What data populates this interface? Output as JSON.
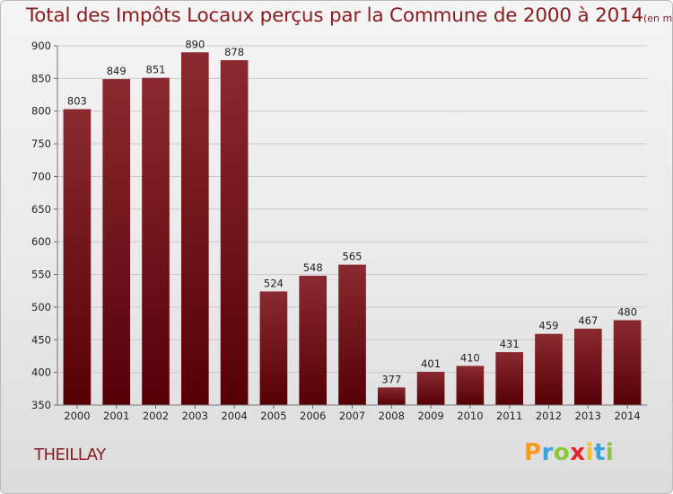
{
  "header": {
    "title": "Total des Impôts Locaux perçus par la Commune de 2000 à 2014",
    "unit": "(en milliers d'€)"
  },
  "commune": "THEILLAY",
  "logo": {
    "text": "Proxiti",
    "letters": [
      "P",
      "r",
      "o",
      "x",
      "i",
      "t",
      "i"
    ]
  },
  "chart_data": {
    "type": "bar",
    "title": "Total des Impôts Locaux perçus par la Commune de 2000 à 2014",
    "subtitle": "(en milliers d'€)",
    "categories": [
      "2000",
      "2001",
      "2002",
      "2003",
      "2004",
      "2005",
      "2006",
      "2007",
      "2008",
      "2009",
      "2010",
      "2011",
      "2012",
      "2013",
      "2014"
    ],
    "values": [
      803,
      849,
      851,
      890,
      878,
      524,
      548,
      565,
      377,
      401,
      410,
      431,
      459,
      467,
      480
    ],
    "ylim": [
      350,
      900
    ],
    "yticks": [
      350,
      400,
      450,
      500,
      550,
      600,
      650,
      700,
      750,
      800,
      850,
      900
    ],
    "xlabel": "",
    "ylabel": "",
    "grid": true,
    "bar_color_top": "#8a2a30",
    "bar_color_bottom": "#560006"
  }
}
